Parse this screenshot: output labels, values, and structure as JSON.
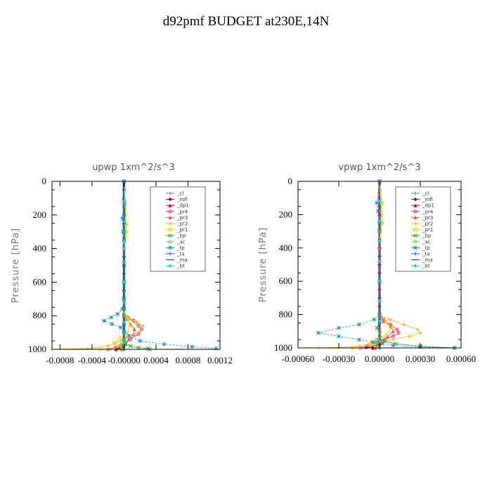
{
  "page_title": "d92pmf  BUDGET at230E,14N",
  "chart_data": [
    {
      "type": "line",
      "title": "upwp   1xm^2/s^3",
      "ylabel": "Pressure  [hPa]",
      "xlim": [
        -0.0009,
        0.0012
      ],
      "ylim": [
        1000,
        0
      ],
      "xticks": [
        -0.0008,
        -0.0004,
        0.0,
        0.0004,
        0.0008,
        0.0012
      ],
      "xtick_labels": [
        "-0.0008",
        "-0.0004",
        "-0.00000",
        "0.0004",
        "0.0008",
        "0.0012"
      ],
      "yticks": [
        0,
        200,
        400,
        600,
        800,
        1000
      ],
      "ytick_labels": [
        "0",
        "200",
        "400",
        "600",
        "800",
        "1000"
      ],
      "legend": "top-right",
      "series": [
        {
          "name": "_cl",
          "color": "#9b59b6",
          "marker": "+",
          "x": [
            0,
            0,
            0,
            0,
            0,
            0,
            0,
            0,
            0,
            0,
            0,
            0,
            0,
            0,
            0,
            0,
            0,
            0,
            0,
            0,
            0
          ],
          "p": [
            0,
            50,
            100,
            150,
            200,
            250,
            300,
            350,
            400,
            450,
            500,
            550,
            600,
            650,
            700,
            750,
            800,
            850,
            900,
            950,
            1000
          ]
        },
        {
          "name": "_mfl",
          "color": "#800040",
          "marker": "diamond",
          "x": [
            0,
            0,
            0,
            0,
            0,
            0,
            0,
            0,
            0,
            0,
            0,
            0,
            0,
            0,
            0,
            0,
            0,
            0,
            0,
            0,
            0
          ],
          "p": [
            0,
            50,
            100,
            150,
            200,
            250,
            300,
            350,
            400,
            450,
            500,
            550,
            600,
            650,
            700,
            750,
            800,
            850,
            900,
            950,
            1000
          ]
        },
        {
          "name": "_dp1",
          "color": "#cc0033",
          "marker": "triangle",
          "x": [
            0,
            0,
            0,
            0,
            0,
            0,
            0,
            0,
            0,
            0,
            0,
            0,
            0,
            0,
            0,
            0,
            -2e-05,
            -6e-05,
            -0.0001
          ],
          "p": [
            0,
            100,
            200,
            300,
            400,
            500,
            600,
            700,
            750,
            800,
            850,
            900,
            930,
            950,
            960,
            970,
            980,
            990,
            1000
          ]
        },
        {
          "name": "_pr4",
          "color": "#e8334a",
          "marker": "o",
          "x": [
            0,
            0,
            0,
            0,
            0,
            0,
            0,
            5e-05,
            0.00012,
            0.00018,
            0.00022,
            0.00018,
            8e-05,
            2e-05,
            -4e-05,
            -0.0001,
            -0.0002
          ],
          "p": [
            0,
            200,
            400,
            600,
            700,
            760,
            790,
            810,
            830,
            860,
            880,
            910,
            940,
            960,
            975,
            988,
            1000
          ]
        },
        {
          "name": "_pr3",
          "color": "#ff4d4d",
          "marker": "triangle",
          "x": [
            0,
            0,
            0,
            0,
            3e-05,
            8e-05,
            0.00013,
            0.00012,
            6e-05,
            1e-05,
            -3e-05
          ],
          "p": [
            0,
            400,
            700,
            800,
            820,
            850,
            880,
            910,
            940,
            970,
            1000
          ]
        },
        {
          "name": "_pr2",
          "color": "#ffaa00",
          "marker": "+",
          "x": [
            0,
            2e-05,
            3e-05,
            2e-05,
            0,
            0,
            0,
            6e-05,
            0.00016,
            0.00024,
            0.00022,
            0.00012,
            3e-05,
            -4e-05,
            -0.00012,
            -0.0002,
            -0.00045,
            -0.0009
          ],
          "p": [
            0,
            130,
            260,
            330,
            400,
            600,
            780,
            820,
            840,
            860,
            880,
            910,
            930,
            950,
            965,
            980,
            995,
            1000
          ]
        },
        {
          "name": "_pr1",
          "color": "#ffd000",
          "marker": "x",
          "x": [
            0,
            1e-05,
            3e-05,
            3e-05,
            1e-05,
            0,
            0,
            4e-05,
            8e-05,
            4e-05,
            -5e-05,
            -0.00012,
            -6e-05,
            -0.0003
          ],
          "p": [
            0,
            130,
            250,
            300,
            360,
            400,
            780,
            820,
            860,
            900,
            930,
            960,
            980,
            1000
          ]
        },
        {
          "name": "_bp",
          "color": "#22aa22",
          "marker": "x",
          "x": [
            0,
            0,
            0,
            0,
            0,
            2e-05,
            8e-05,
            0.00018,
            0.0003,
            0.00032
          ],
          "p": [
            0,
            300,
            600,
            900,
            950,
            970,
            980,
            990,
            995,
            1000
          ]
        },
        {
          "name": "_ac",
          "color": "#66dd44",
          "marker": "o",
          "x": [
            0,
            0,
            0,
            0,
            0,
            -2e-05,
            -5e-05,
            -2e-05
          ],
          "p": [
            0,
            300,
            600,
            900,
            950,
            970,
            985,
            1000
          ]
        },
        {
          "name": "_tp",
          "color": "#1e8fc8",
          "marker": "*",
          "x": [
            0,
            0,
            -2e-05,
            -1e-05,
            0,
            0,
            -2e-05,
            -8e-05,
            -0.00016,
            -0.00025,
            -0.00015,
            -4e-05,
            0,
            6e-05,
            0.0002,
            0.0005,
            0.00085,
            0.00115
          ],
          "p": [
            0,
            130,
            220,
            300,
            350,
            700,
            760,
            790,
            810,
            830,
            850,
            870,
            890,
            920,
            950,
            970,
            985,
            995
          ]
        },
        {
          "name": "_ta",
          "color": "#1a4fd1",
          "marker": "+",
          "x": [
            0,
            0,
            0,
            0,
            0,
            0,
            0,
            0,
            0,
            0
          ],
          "p": [
            0,
            120,
            240,
            360,
            480,
            600,
            720,
            840,
            960,
            1000
          ]
        },
        {
          "name": "_ma",
          "color": "#2d2d8f",
          "marker": "-",
          "x": [
            0,
            0,
            0,
            0,
            0,
            0,
            0,
            0,
            0,
            0
          ],
          "p": [
            0,
            120,
            240,
            360,
            480,
            600,
            720,
            840,
            960,
            1000
          ]
        },
        {
          "name": "_bt",
          "color": "#00d5e0",
          "marker": "diamond",
          "x": [
            0,
            0,
            0,
            0,
            0,
            0,
            0,
            0,
            0,
            0
          ],
          "p": [
            0,
            120,
            240,
            360,
            480,
            600,
            720,
            840,
            960,
            1000
          ]
        }
      ]
    },
    {
      "type": "line",
      "title": "vpwp   1xm^2/s^3",
      "ylabel": "Pressure  [hPa]",
      "xlim": [
        -0.0006,
        0.0006
      ],
      "ylim": [
        1000,
        0
      ],
      "xticks": [
        -0.0006,
        -0.0003,
        0.0,
        0.0003,
        0.0006
      ],
      "xtick_labels": [
        "-0.00060",
        "-0.00030",
        "0.00000",
        "0.00030",
        "0.00060"
      ],
      "yticks": [
        0,
        200,
        400,
        600,
        800,
        1000
      ],
      "ytick_labels": [
        "0",
        "200",
        "400",
        "600",
        "800",
        "1000"
      ],
      "legend": "top-right",
      "series": [
        {
          "name": "_cl",
          "color": "#9b59b6",
          "marker": "+",
          "x": [
            0,
            0,
            0,
            0,
            0,
            0,
            0,
            0,
            0,
            0,
            0,
            0,
            0,
            0,
            0,
            0,
            0,
            0,
            0,
            0,
            0
          ],
          "p": [
            0,
            50,
            100,
            150,
            200,
            250,
            300,
            350,
            400,
            450,
            500,
            550,
            600,
            650,
            700,
            750,
            800,
            850,
            900,
            950,
            1000
          ]
        },
        {
          "name": "_mfl",
          "color": "#800040",
          "marker": "diamond",
          "x": [
            0,
            0,
            0,
            0,
            0,
            0,
            0,
            0,
            0,
            0,
            0,
            0,
            0,
            0,
            0,
            0,
            0,
            0,
            0,
            0,
            0
          ],
          "p": [
            0,
            50,
            100,
            150,
            200,
            250,
            300,
            350,
            400,
            450,
            500,
            550,
            600,
            650,
            700,
            750,
            800,
            850,
            900,
            950,
            1000
          ]
        },
        {
          "name": "_dp1",
          "color": "#cc0033",
          "marker": "triangle",
          "x": [
            0,
            0,
            0,
            0,
            0,
            0,
            0,
            0,
            0,
            -2e-05,
            -5e-05,
            -0.0001,
            -5e-05
          ],
          "p": [
            0,
            200,
            400,
            600,
            800,
            900,
            940,
            960,
            970,
            980,
            990,
            995,
            1000
          ]
        },
        {
          "name": "_pr4",
          "color": "#e8334a",
          "marker": "o",
          "x": [
            0,
            0,
            0,
            3e-05,
            8e-05,
            0.00013,
            0.00014,
            0.0001,
            4e-05,
            -2e-05,
            -8e-05,
            -0.00014
          ],
          "p": [
            0,
            400,
            800,
            830,
            860,
            890,
            910,
            930,
            950,
            970,
            985,
            1000
          ]
        },
        {
          "name": "_pr3",
          "color": "#ff4d4d",
          "marker": "triangle",
          "x": [
            0,
            0,
            0,
            3e-05,
            8e-05,
            0.0001,
            6e-05,
            1e-05,
            -3e-05
          ],
          "p": [
            0,
            400,
            800,
            840,
            870,
            900,
            930,
            960,
            1000
          ]
        },
        {
          "name": "_pr2",
          "color": "#ffaa00",
          "marker": "+",
          "x": [
            0,
            2e-05,
            2e-05,
            0,
            0,
            8e-05,
            0.00018,
            0.00028,
            0.0003,
            0.00022,
            0.0001,
            3e-05,
            -5e-05,
            -0.00015,
            -0.0003,
            -0.00045
          ],
          "p": [
            0,
            130,
            250,
            340,
            800,
            830,
            860,
            890,
            910,
            930,
            950,
            965,
            978,
            988,
            996,
            1000
          ]
        },
        {
          "name": "_pr1",
          "color": "#ffd000",
          "marker": "x",
          "x": [
            0,
            1e-05,
            2e-05,
            0,
            0,
            5e-05,
            9e-05,
            5e-05,
            -2e-05,
            -8e-05,
            -0.0002
          ],
          "p": [
            0,
            130,
            250,
            360,
            800,
            840,
            880,
            920,
            950,
            975,
            1000
          ]
        },
        {
          "name": "_bp",
          "color": "#22aa22",
          "marker": "x",
          "x": [
            0,
            0,
            0,
            0,
            0,
            -2e-05,
            3e-05,
            0.00012,
            0.0003,
            0.00055
          ],
          "p": [
            0,
            300,
            600,
            800,
            840,
            880,
            960,
            975,
            990,
            1000
          ]
        },
        {
          "name": "_ac",
          "color": "#66dd44",
          "marker": "o",
          "x": [
            0,
            0,
            0,
            0,
            -2e-05,
            -4e-05,
            -2e-05,
            0
          ],
          "p": [
            0,
            300,
            600,
            900,
            950,
            970,
            985,
            1000
          ]
        },
        {
          "name": "_tp",
          "color": "#1e8fc8",
          "marker": "*",
          "x": [
            0,
            -2e-05,
            -1e-05,
            0,
            0,
            -4e-05,
            -0.00015,
            -0.0003,
            -0.00045,
            -0.0003,
            -0.00015,
            -5e-05,
            2e-05,
            0.0001,
            0.0003,
            0.00055
          ],
          "p": [
            0,
            130,
            180,
            250,
            800,
            830,
            860,
            880,
            910,
            930,
            950,
            965,
            975,
            985,
            995,
            1000
          ]
        },
        {
          "name": "_ta",
          "color": "#1a4fd1",
          "marker": "+",
          "x": [
            0,
            0,
            0,
            0,
            0,
            0,
            0,
            0,
            0,
            0
          ],
          "p": [
            0,
            120,
            240,
            360,
            480,
            600,
            720,
            840,
            960,
            1000
          ]
        },
        {
          "name": "_ma",
          "color": "#2d2d8f",
          "marker": "-",
          "x": [
            0,
            0,
            0,
            0,
            0,
            0,
            0,
            0,
            0,
            0
          ],
          "p": [
            0,
            120,
            240,
            360,
            480,
            600,
            720,
            840,
            960,
            1000
          ]
        },
        {
          "name": "_bt",
          "color": "#00d5e0",
          "marker": "diamond",
          "x": [
            0,
            0,
            0,
            0,
            0,
            0,
            0,
            0,
            0,
            0
          ],
          "p": [
            0,
            120,
            240,
            360,
            480,
            600,
            720,
            840,
            960,
            1000
          ]
        }
      ]
    }
  ]
}
